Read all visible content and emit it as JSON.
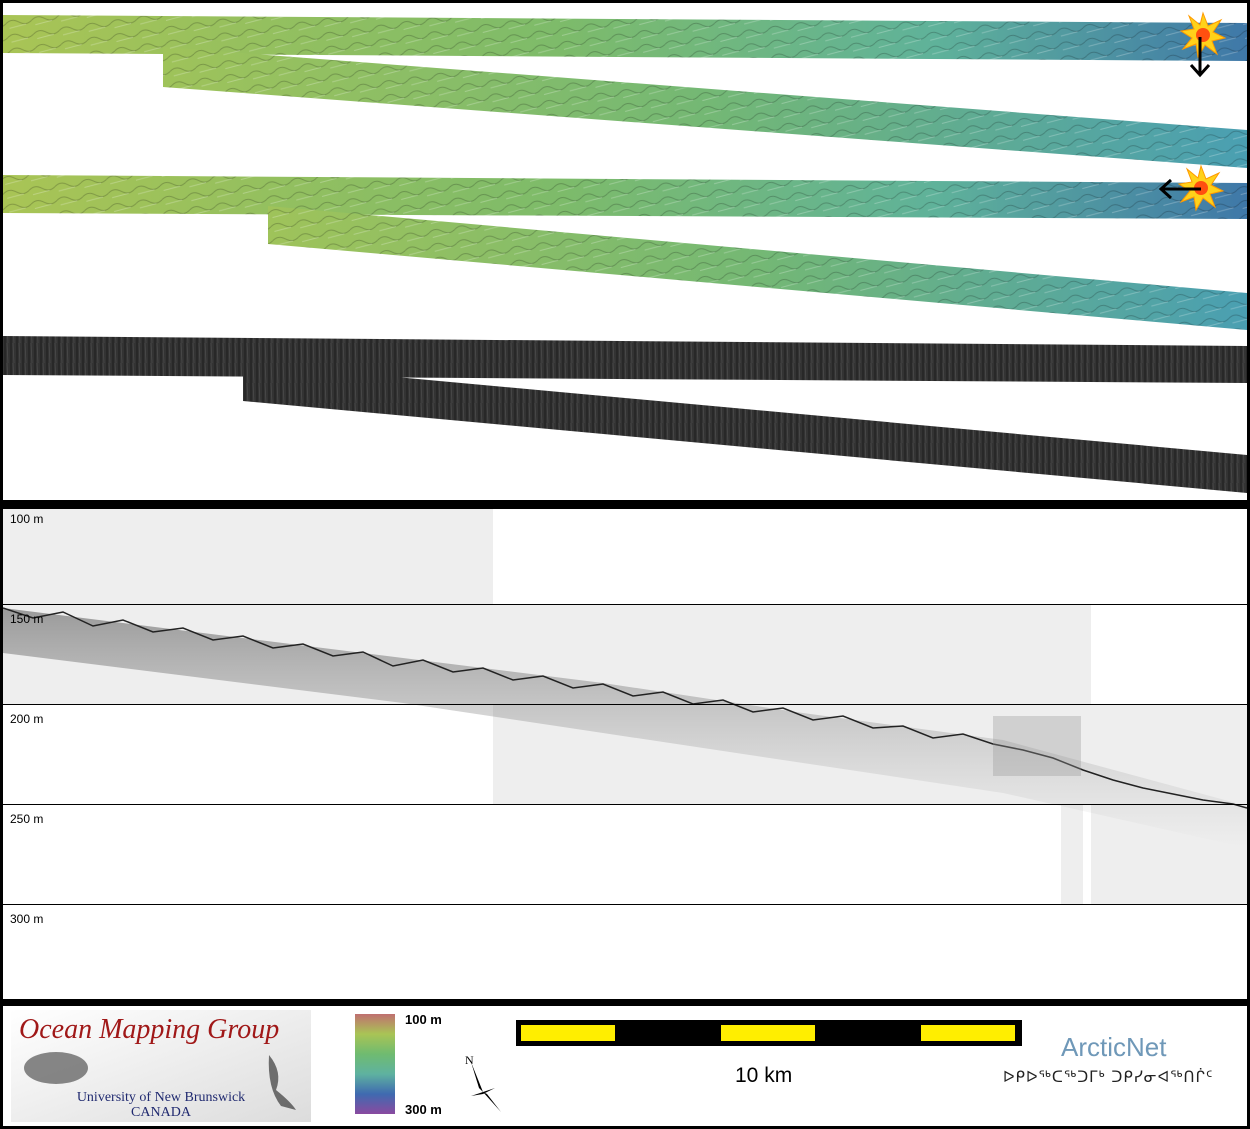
{
  "depth_axis": {
    "labels": [
      "100 m",
      "150 m",
      "200 m",
      "250 m",
      "300 m"
    ]
  },
  "colors": {
    "shallow": "#a5c255",
    "mid": "#62b488",
    "deep": "#3f7fa6",
    "backscatter": "#2f2f2f",
    "profile_bg": "#eeeeee",
    "scale_black": "#000000",
    "scale_yellow": "#ffee00"
  },
  "map": {
    "bathymetry_strips": 4,
    "backscatter_strips": 2,
    "sun_icons": [
      {
        "name": "sun-icon",
        "arrow": "down"
      },
      {
        "name": "sun-icon",
        "arrow": "left"
      }
    ]
  },
  "legend": {
    "colorbar_top": "100 m",
    "colorbar_bottom": "300 m",
    "north_label": "N",
    "scale_label": "10 km"
  },
  "logos": {
    "omg_title": "Ocean Mapping Group",
    "omg_line1": "University of New Brunswick",
    "omg_line2": "CANADA",
    "arcticnet_title": "ArcticNet",
    "arcticnet_syllabics": "ᐅᑭᐅᖅᑕᖅᑐᒥᒃ ᑐᑭᓯᓂᐊᖅᑎᒌᑦ"
  }
}
